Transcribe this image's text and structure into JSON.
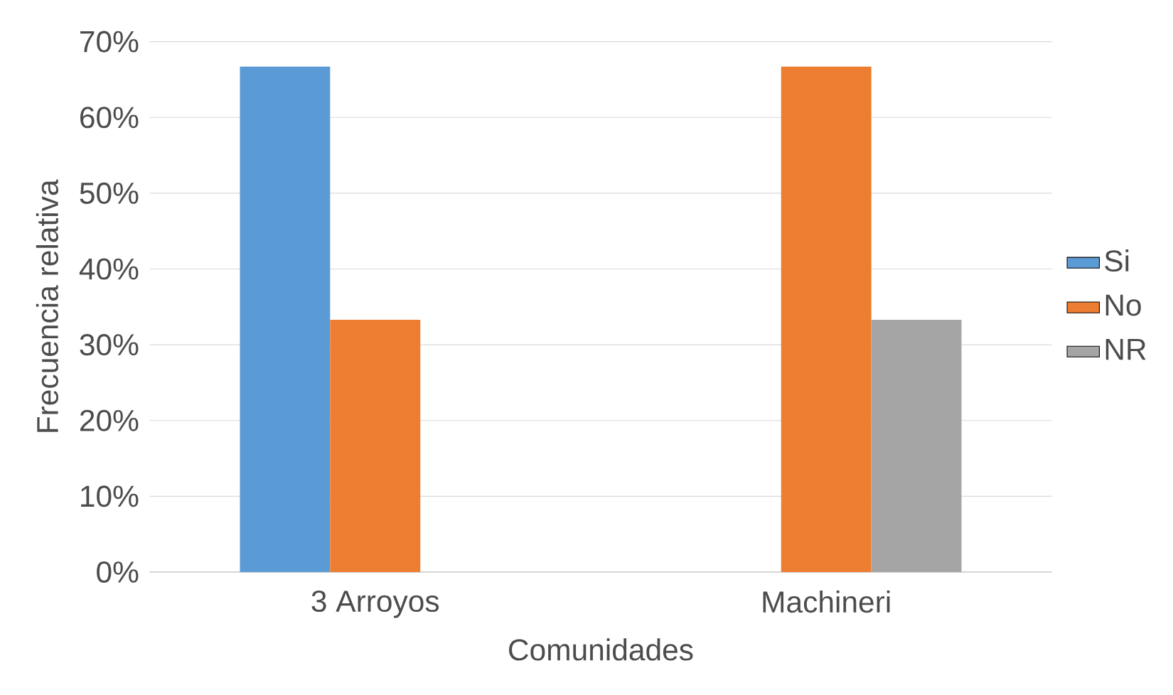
{
  "chart_data": {
    "type": "bar",
    "xlabel": "Comunidades",
    "ylabel": "Frecuencia relativa",
    "categories": [
      "3 Arroyos",
      "Machineri"
    ],
    "series": [
      {
        "name": "Si",
        "color": "#5b9bd5",
        "values": [
          66.7,
          null
        ]
      },
      {
        "name": "No",
        "color": "#ed7d31",
        "values": [
          33.3,
          66.7
        ]
      },
      {
        "name": "NR",
        "color": "#a5a5a5",
        "values": [
          null,
          33.3
        ]
      }
    ],
    "ylim": [
      0,
      70
    ],
    "yticks": [
      {
        "value": 0,
        "label": "0%"
      },
      {
        "value": 10,
        "label": "10%"
      },
      {
        "value": 20,
        "label": "20%"
      },
      {
        "value": 30,
        "label": "30%"
      },
      {
        "value": 40,
        "label": "40%"
      },
      {
        "value": 50,
        "label": "50%"
      },
      {
        "value": 60,
        "label": "60%"
      },
      {
        "value": 70,
        "label": "70%"
      }
    ],
    "grid": "y",
    "legend": "right"
  }
}
